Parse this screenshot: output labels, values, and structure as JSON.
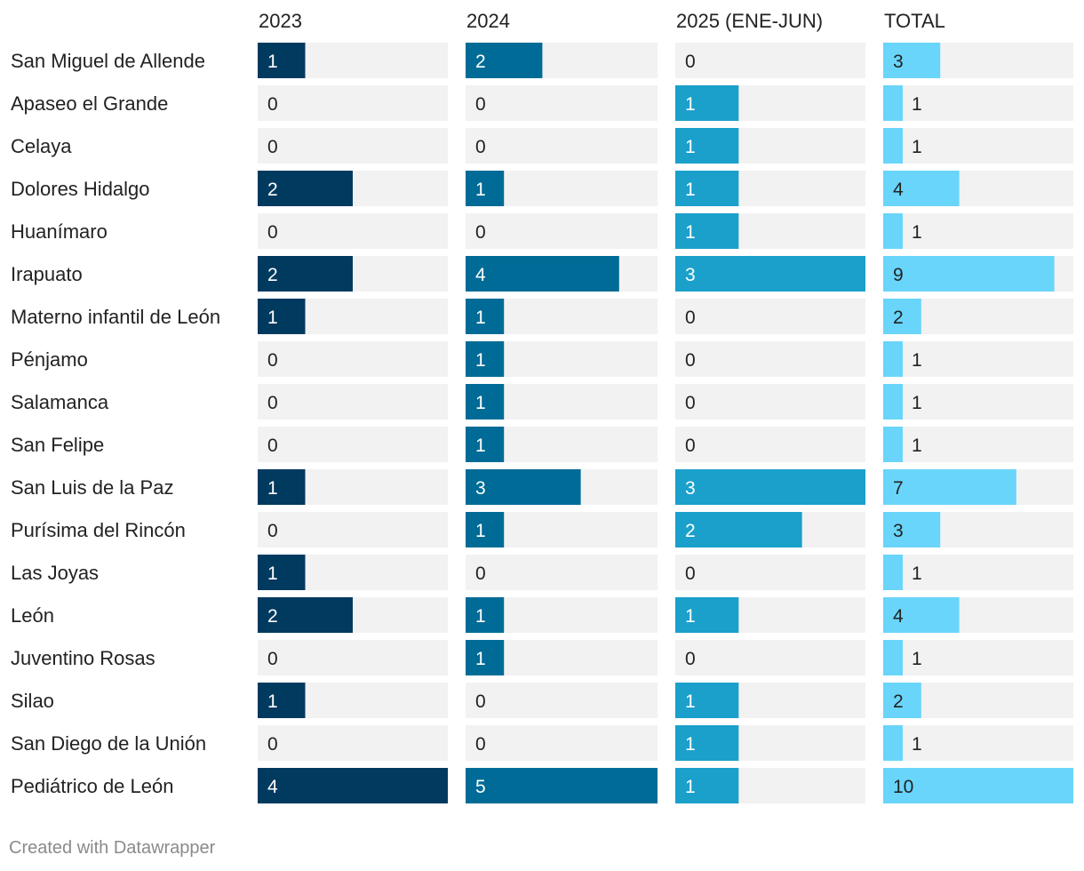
{
  "chart_data": {
    "type": "bar",
    "title": "",
    "columns": [
      {
        "name": "2023",
        "color": "#003a5f",
        "max": 4
      },
      {
        "name": "2024",
        "color": "#006b96",
        "max": 5
      },
      {
        "name": "2025 (ENE-JUN)",
        "color": "#1aa0cb",
        "max": 3
      },
      {
        "name": "TOTAL",
        "color": "#69d5fa",
        "max": 10
      }
    ],
    "categories": [
      "San Miguel de Allende",
      "Apaseo el Grande",
      "Celaya",
      "Dolores Hidalgo",
      "Huanímaro",
      "Irapuato",
      "Materno infantil de León",
      "Pénjamo",
      "Salamanca",
      "San Felipe",
      "San Luis de la Paz",
      "Purísima del Rincón",
      "Las Joyas",
      "León",
      "Juventino Rosas",
      "Silao",
      "San Diego de la Unión",
      "Pediátrico de León"
    ],
    "series": [
      {
        "name": "2023",
        "values": [
          1,
          0,
          0,
          2,
          0,
          2,
          1,
          0,
          0,
          0,
          1,
          0,
          1,
          2,
          0,
          1,
          0,
          4
        ]
      },
      {
        "name": "2024",
        "values": [
          2,
          0,
          0,
          1,
          0,
          4,
          1,
          1,
          1,
          1,
          3,
          1,
          0,
          1,
          1,
          0,
          0,
          5
        ]
      },
      {
        "name": "2025 (ENE-JUN)",
        "values": [
          0,
          1,
          1,
          1,
          1,
          3,
          0,
          0,
          0,
          0,
          3,
          2,
          0,
          1,
          0,
          1,
          1,
          1
        ]
      },
      {
        "name": "TOTAL",
        "values": [
          3,
          1,
          1,
          4,
          1,
          9,
          2,
          1,
          1,
          1,
          7,
          3,
          1,
          4,
          1,
          2,
          1,
          10
        ]
      }
    ]
  },
  "footer": {
    "text": "Created with Datawrapper"
  },
  "colors": {
    "track": "#f2f2f2",
    "label_light": "#ffffff",
    "label_dark": "#222222"
  }
}
